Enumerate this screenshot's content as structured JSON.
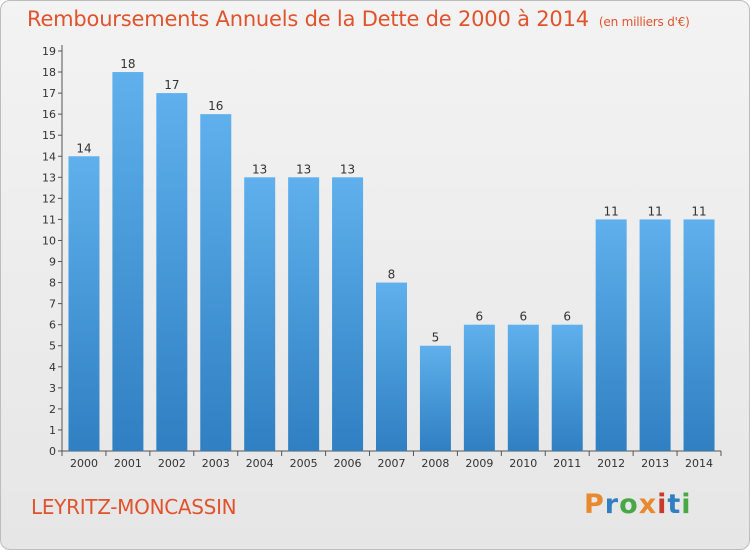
{
  "header": {
    "title": "Remboursements Annuels de la Dette de 2000 à 2014",
    "subtitle": "(en milliers d'€)"
  },
  "footer": {
    "place": "LEYRITZ-MONCASSIN",
    "logo": "Proxiti"
  },
  "colors": {
    "title": "#e0532c",
    "bar_top": "#5fb0ec",
    "bar_bottom": "#2f7fc2",
    "logo_letters": [
      "#e9892f",
      "#2f7fc2",
      "#48a848",
      "#e9892f",
      "#c93a2c",
      "#2f7fc2",
      "#48a848"
    ]
  },
  "chart_data": {
    "type": "bar",
    "categories": [
      "2000",
      "2001",
      "2002",
      "2003",
      "2004",
      "2005",
      "2006",
      "2007",
      "2008",
      "2009",
      "2010",
      "2011",
      "2012",
      "2013",
      "2014"
    ],
    "values": [
      14,
      18,
      17,
      16,
      13,
      13,
      13,
      8,
      5,
      6,
      6,
      6,
      11,
      11,
      11
    ],
    "title": "Remboursements Annuels de la Dette de 2000 à 2014",
    "xlabel": "",
    "ylabel": "",
    "ylim": [
      0,
      19
    ],
    "yticks": [
      0,
      1,
      2,
      3,
      4,
      5,
      6,
      7,
      8,
      9,
      10,
      11,
      12,
      13,
      14,
      15,
      16,
      17,
      18,
      19
    ],
    "grid": false,
    "data_labels": true
  }
}
